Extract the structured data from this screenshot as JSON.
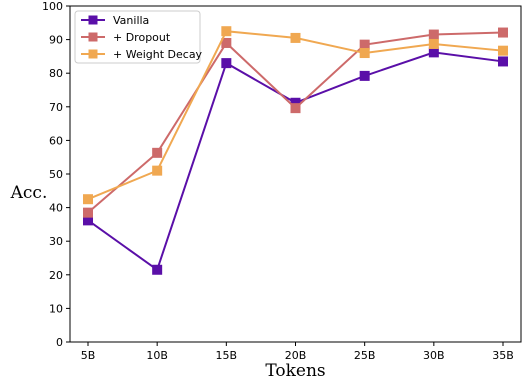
{
  "chart_data": {
    "type": "line",
    "xlabel": "Tokens",
    "ylabel": "Acc.",
    "categories": [
      "5B",
      "10B",
      "15B",
      "20B",
      "25B",
      "30B",
      "35B"
    ],
    "ylim": [
      0,
      100
    ],
    "yticks": [
      0,
      10,
      20,
      30,
      40,
      50,
      60,
      70,
      80,
      90,
      100
    ],
    "grid": false,
    "legend_position": "top-left",
    "series": [
      {
        "name": "Vanilla",
        "color": "#5a0fa8",
        "marker": "square",
        "values": [
          36.2,
          21.5,
          83.0,
          71.2,
          79.2,
          86.2,
          83.5
        ]
      },
      {
        "name": "+ Dropout",
        "color": "#cd6a6a",
        "marker": "square",
        "values": [
          38.5,
          56.3,
          89.0,
          69.6,
          88.5,
          91.5,
          92.1
        ]
      },
      {
        "name": "+ Weight Decay",
        "color": "#f0a851",
        "marker": "square",
        "values": [
          42.5,
          51.0,
          92.5,
          90.5,
          86.0,
          88.7,
          86.7
        ]
      }
    ]
  }
}
